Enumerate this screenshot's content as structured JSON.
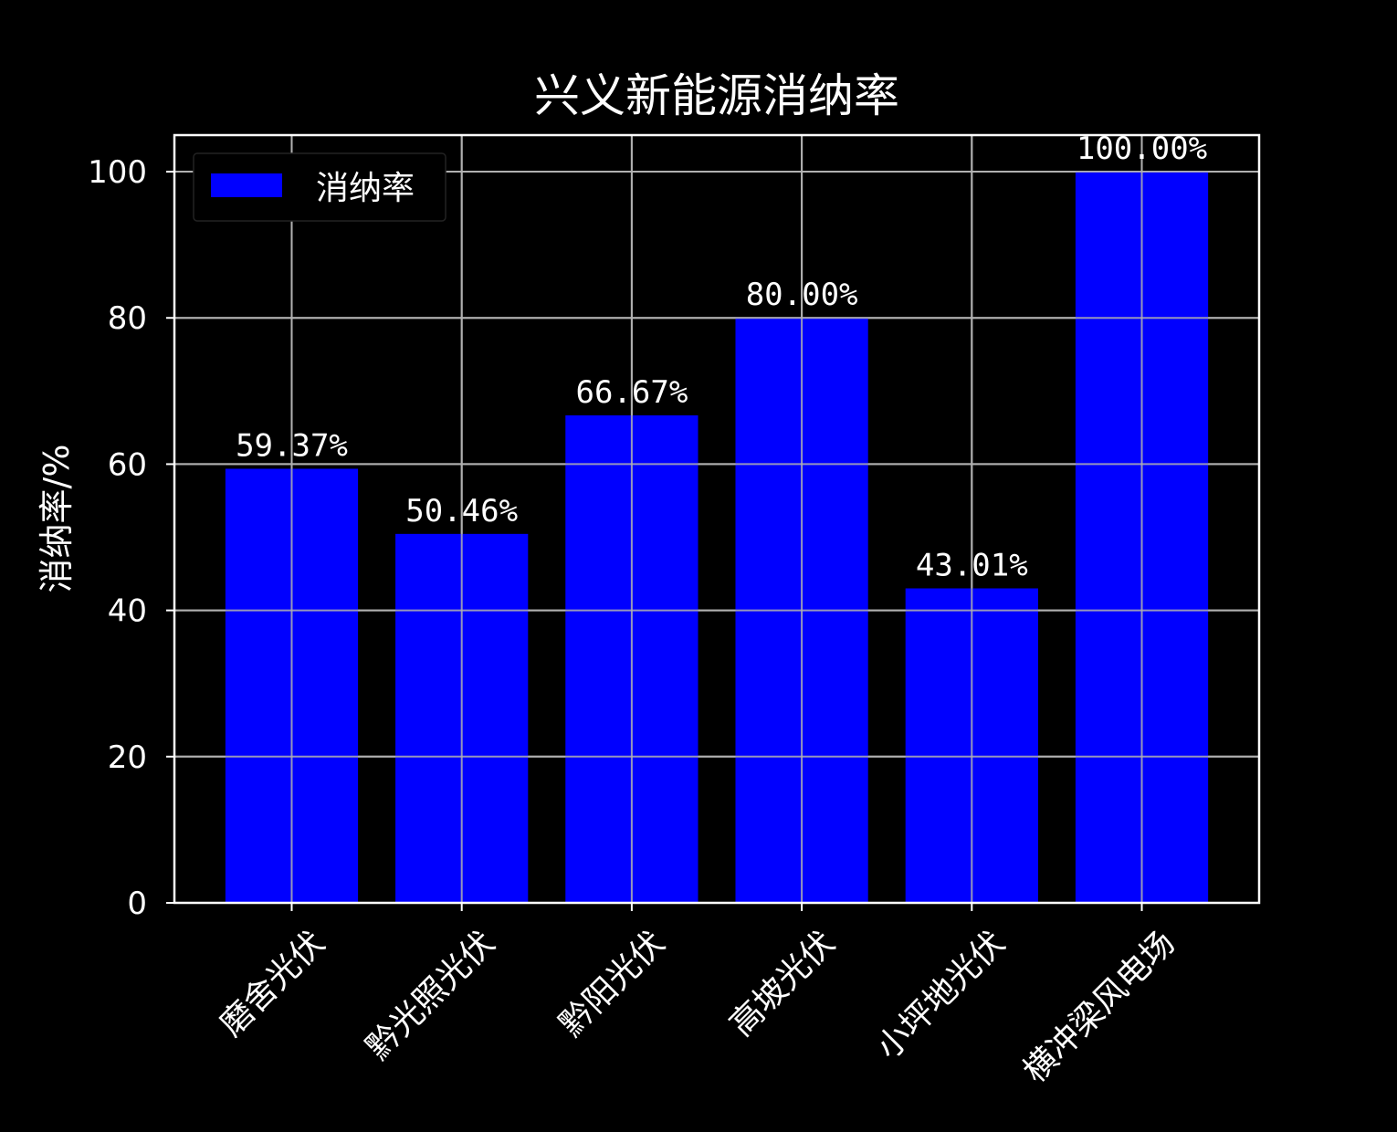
{
  "chart_data": {
    "type": "bar",
    "title": "兴义新能源消纳率",
    "xlabel": "",
    "ylabel": "消纳率/%",
    "categories": [
      "磨舍光伏",
      "黔光照光伏",
      "黔阳光伏",
      "高坡光伏",
      "小坪地光伏",
      "横冲梁风电场"
    ],
    "series": [
      {
        "name": "消纳率",
        "values": [
          59.37,
          50.46,
          66.67,
          80.0,
          43.01,
          100.0
        ],
        "labels": [
          "59.37%",
          "50.46%",
          "66.67%",
          "80.00%",
          "43.01%",
          "100.00%"
        ],
        "color": "#0000ff"
      }
    ],
    "ylim": [
      0,
      105
    ],
    "yticks": [
      0,
      20,
      40,
      60,
      80,
      100
    ],
    "grid": true,
    "legend": "top-left",
    "background": "#000000",
    "text_color": "#ffffff",
    "grid_color": "#b0b0b0"
  }
}
